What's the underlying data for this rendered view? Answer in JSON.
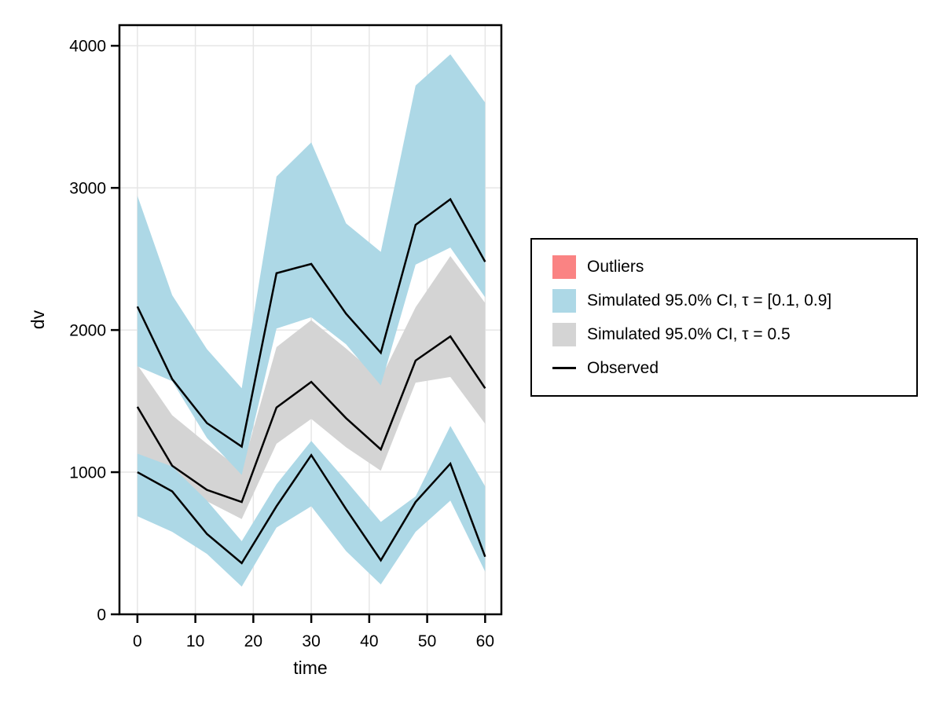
{
  "figure": {
    "background": "#FFFFFF"
  },
  "legend": {
    "items": [
      {
        "label": "Outliers",
        "type": "band",
        "color": "#FA8383"
      },
      {
        "label": "Simulated 95.0% CI, τ = [0.1, 0.9]",
        "type": "band",
        "color": "#ADD8E6"
      },
      {
        "label": "Simulated 95.0% CI, τ = 0.5",
        "type": "band",
        "color": "#D4D4D4"
      },
      {
        "label": "Observed",
        "type": "line",
        "color": "#000000"
      }
    ]
  },
  "chart_data": {
    "type": "area",
    "title": "",
    "xlabel": "time",
    "ylabel": "dv",
    "x_ticks": [
      0,
      10,
      20,
      30,
      40,
      50,
      60
    ],
    "y_ticks": [
      0,
      1000,
      2000,
      3000,
      4000
    ],
    "xlim": [
      -3.1,
      62.8
    ],
    "ylim": [
      0,
      4145
    ],
    "grid": true,
    "legend_position": "right",
    "x": [
      0,
      6,
      12,
      18,
      24,
      30,
      36,
      42,
      48,
      54,
      60
    ],
    "bands": [
      {
        "name": "simulated-ci-tau-0.5",
        "color": "#D4D4D4",
        "upper": [
          1755,
          1400,
          1200,
          1013,
          1880,
          2070,
          1870,
          1660,
          2160,
          2520,
          2190
        ],
        "lower": [
          1130,
          1000,
          795,
          670,
          1200,
          1375,
          1175,
          1010,
          1630,
          1670,
          1340
        ]
      },
      {
        "name": "simulated-ci-tau-0.9",
        "color": "#ADD8E6",
        "upper": [
          2945,
          2245,
          1865,
          1590,
          3080,
          3320,
          2750,
          2550,
          3720,
          3940,
          3600
        ],
        "lower": [
          1745,
          1640,
          1240,
          980,
          2010,
          2090,
          1900,
          1610,
          2460,
          2580,
          2230
        ]
      },
      {
        "name": "simulated-ci-tau-0.1",
        "color": "#ADD8E6",
        "upper": [
          1130,
          1040,
          800,
          515,
          915,
          1220,
          940,
          650,
          830,
          1325,
          900
        ],
        "lower": [
          690,
          580,
          425,
          195,
          610,
          760,
          445,
          210,
          580,
          800,
          300
        ]
      }
    ],
    "lines": [
      {
        "name": "observed-quantile-0.9",
        "color": "#000000",
        "values": [
          2165,
          1655,
          1345,
          1180,
          2400,
          2465,
          2115,
          1840,
          2740,
          2920,
          2480
        ]
      },
      {
        "name": "observed-quantile-0.5",
        "color": "#000000",
        "values": [
          1460,
          1045,
          875,
          790,
          1455,
          1635,
          1380,
          1160,
          1785,
          1955,
          1590
        ]
      },
      {
        "name": "observed-quantile-0.1",
        "color": "#000000",
        "values": [
          1000,
          865,
          565,
          360,
          760,
          1120,
          740,
          380,
          790,
          1060,
          405
        ]
      }
    ]
  }
}
